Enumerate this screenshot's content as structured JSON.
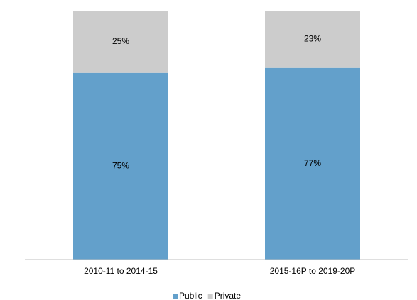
{
  "chart_data": {
    "type": "stacked_bar",
    "categories": [
      "2010-11 to 2014-15",
      "2015-16P to 2019-20P"
    ],
    "series": [
      {
        "name": "Public",
        "color": "#63a0cb",
        "values": [
          75,
          77
        ],
        "value_labels": [
          "75%",
          "77%"
        ]
      },
      {
        "name": "Private",
        "color": "#cccccc",
        "values": [
          25,
          23
        ],
        "value_labels": [
          "25%",
          "23%"
        ]
      }
    ],
    "ylim": [
      0,
      100
    ],
    "legend": "bottom"
  }
}
